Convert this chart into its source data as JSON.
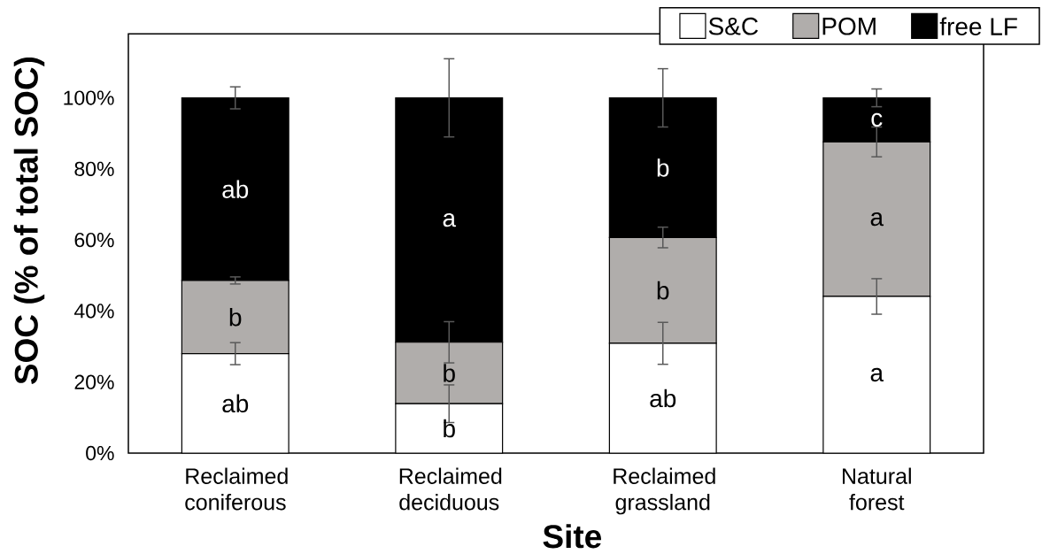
{
  "chart_data": {
    "type": "bar",
    "stacked": true,
    "xlabel": "Site",
    "ylabel": "SOC (% of total SOC)",
    "categories": [
      "Reclaimed coniferous",
      "Reclaimed deciduous",
      "Reclaimed grassland",
      "Natural forest"
    ],
    "series": [
      {
        "name": "S&C",
        "color": "#ffffff",
        "values": [
          28.0,
          13.9,
          30.9,
          44.1
        ],
        "errors": [
          3.1,
          5.3,
          5.9,
          5.0
        ],
        "value_labels": [
          "ab",
          "b",
          "ab",
          "a"
        ]
      },
      {
        "name": "POM",
        "color": "#b0adab",
        "values": [
          20.6,
          17.3,
          29.8,
          43.5
        ],
        "errors": [
          1.0,
          5.8,
          2.9,
          4.2
        ],
        "value_labels": [
          "b",
          "b",
          "b",
          "a"
        ]
      },
      {
        "name": "free LF",
        "color": "#000000",
        "values": [
          51.4,
          68.8,
          39.3,
          12.4
        ],
        "errors": [
          3.1,
          11.0,
          8.2,
          2.5
        ],
        "value_labels": [
          "ab",
          "a",
          "b",
          "c"
        ]
      }
    ],
    "ylim": [
      0,
      118
    ],
    "yticks": [
      {
        "value": 0,
        "label": "0%"
      },
      {
        "value": 20,
        "label": "20%"
      },
      {
        "value": 40,
        "label": "40%"
      },
      {
        "value": 60,
        "label": "60%"
      },
      {
        "value": 80,
        "label": "80%"
      },
      {
        "value": 100,
        "label": "100%"
      }
    ],
    "legend": "top right"
  }
}
